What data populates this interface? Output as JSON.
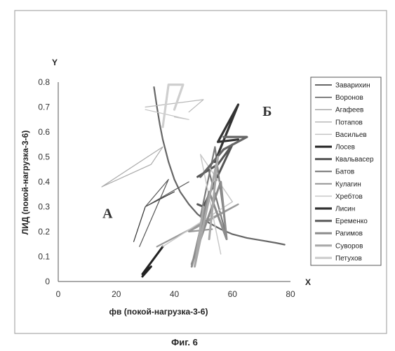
{
  "chart_data": {
    "type": "line",
    "xlabel": "фв (покой-нагрузка-3-6)",
    "ylabel": "ЛИД (покой-нагрузка-3-6)",
    "x_axis_letter": "X",
    "y_axis_letter": "Y",
    "xlim": [
      0,
      80
    ],
    "ylim": [
      0,
      0.8
    ],
    "x_ticks": [
      0,
      20,
      40,
      60,
      80
    ],
    "y_ticks": [
      0,
      0.1,
      0.2,
      0.3,
      0.4,
      0.5,
      0.6,
      0.7,
      0.8
    ],
    "y_tick_labels": [
      "0",
      "0.1",
      "0.2",
      "0.3",
      "0.4",
      "0.5",
      "0.6",
      "0.7",
      "0.8"
    ],
    "grid": false,
    "legend_position": "right",
    "region_labels": [
      {
        "text": "А",
        "x": 17,
        "y": 0.255
      },
      {
        "text": "Б",
        "x": 72,
        "y": 0.665
      }
    ],
    "boundary_curve": {
      "color": "#666666",
      "points": [
        [
          33,
          0.78
        ],
        [
          34,
          0.7
        ],
        [
          35,
          0.63
        ],
        [
          36,
          0.57
        ],
        [
          38,
          0.48
        ],
        [
          40,
          0.41
        ],
        [
          42,
          0.36
        ],
        [
          45,
          0.31
        ],
        [
          48,
          0.27
        ],
        [
          52,
          0.235
        ],
        [
          56,
          0.21
        ],
        [
          60,
          0.19
        ],
        [
          65,
          0.175
        ],
        [
          70,
          0.165
        ],
        [
          75,
          0.155
        ],
        [
          78,
          0.148
        ]
      ]
    },
    "series": [
      {
        "name": "Заварихин",
        "color": "#333333",
        "width": 1.2,
        "points": [
          [
            26,
            0.16
          ],
          [
            30,
            0.3
          ],
          [
            40,
            0.36
          ]
        ]
      },
      {
        "name": "Воронов",
        "color": "#555555",
        "width": 1.2,
        "points": [
          [
            28,
            0.14
          ],
          [
            38,
            0.41
          ],
          [
            30,
            0.3
          ],
          [
            45,
            0.4
          ]
        ]
      },
      {
        "name": "Агафеев",
        "color": "#aaaaaa",
        "width": 1.2,
        "points": [
          [
            15,
            0.38
          ],
          [
            36,
            0.54
          ],
          [
            32,
            0.47
          ],
          [
            15,
            0.38
          ]
        ]
      },
      {
        "name": "Потапов",
        "color": "#b8b8b8",
        "width": 1.2,
        "points": [
          [
            30,
            0.7
          ],
          [
            50,
            0.73
          ],
          [
            45,
            0.68
          ]
        ]
      },
      {
        "name": "Васильев",
        "color": "#c4c4c4",
        "width": 1.2,
        "points": [
          [
            30,
            0.69
          ],
          [
            45,
            0.65
          ],
          [
            40,
            0.66
          ]
        ]
      },
      {
        "name": "Лосев",
        "color": "#222222",
        "width": 3,
        "points": [
          [
            29,
            0.02
          ],
          [
            32,
            0.06
          ],
          [
            29,
            0.03
          ],
          [
            36,
            0.14
          ]
        ]
      },
      {
        "name": "Квальвасер",
        "color": "#555555",
        "width": 3,
        "points": [
          [
            48,
            0.42
          ],
          [
            55,
            0.47
          ],
          [
            60,
            0.55
          ],
          [
            50,
            0.3
          ],
          [
            48,
            0.31
          ]
        ]
      },
      {
        "name": "Батов",
        "color": "#7a7a7a",
        "width": 2.2,
        "points": [
          [
            49,
            0.26
          ],
          [
            54,
            0.54
          ],
          [
            58,
            0.18
          ],
          [
            52,
            0.44
          ]
        ]
      },
      {
        "name": "Кулагин",
        "color": "#999999",
        "width": 2.2,
        "points": [
          [
            34,
            0.14
          ],
          [
            62,
            0.31
          ],
          [
            45,
            0.2
          ],
          [
            53,
            0.21
          ]
        ]
      },
      {
        "name": "Хребтов",
        "color": "#c8c8c8",
        "width": 1.5,
        "points": [
          [
            36,
            0.14
          ],
          [
            60,
            0.32
          ],
          [
            49,
            0.51
          ],
          [
            56,
            0.11
          ]
        ]
      },
      {
        "name": "Лисин",
        "color": "#333333",
        "width": 3.2,
        "points": [
          [
            54,
            0.48
          ],
          [
            62,
            0.71
          ],
          [
            55,
            0.56
          ],
          [
            62,
            0.57
          ]
        ]
      },
      {
        "name": "Еременко",
        "color": "#666666",
        "width": 3.2,
        "points": [
          [
            49,
            0.42
          ],
          [
            57,
            0.53
          ],
          [
            65,
            0.58
          ],
          [
            57,
            0.58
          ]
        ]
      },
      {
        "name": "Рагимов",
        "color": "#8c8c8c",
        "width": 3,
        "points": [
          [
            46,
            0.07
          ],
          [
            56,
            0.4
          ],
          [
            58,
            0.17
          ],
          [
            52,
            0.36
          ],
          [
            46,
            0.06
          ]
        ]
      },
      {
        "name": "Суворов",
        "color": "#a8a8a8",
        "width": 3,
        "points": [
          [
            50,
            0.3
          ],
          [
            47,
            0.06
          ],
          [
            55,
            0.5
          ],
          [
            52,
            0.17
          ]
        ]
      },
      {
        "name": "Петухов",
        "color": "#cfcfcf",
        "width": 3.2,
        "points": [
          [
            36,
            0.62
          ],
          [
            38,
            0.79
          ],
          [
            43,
            0.79
          ],
          [
            40,
            0.69
          ]
        ]
      }
    ]
  },
  "figure_caption": "Фиг. 6"
}
